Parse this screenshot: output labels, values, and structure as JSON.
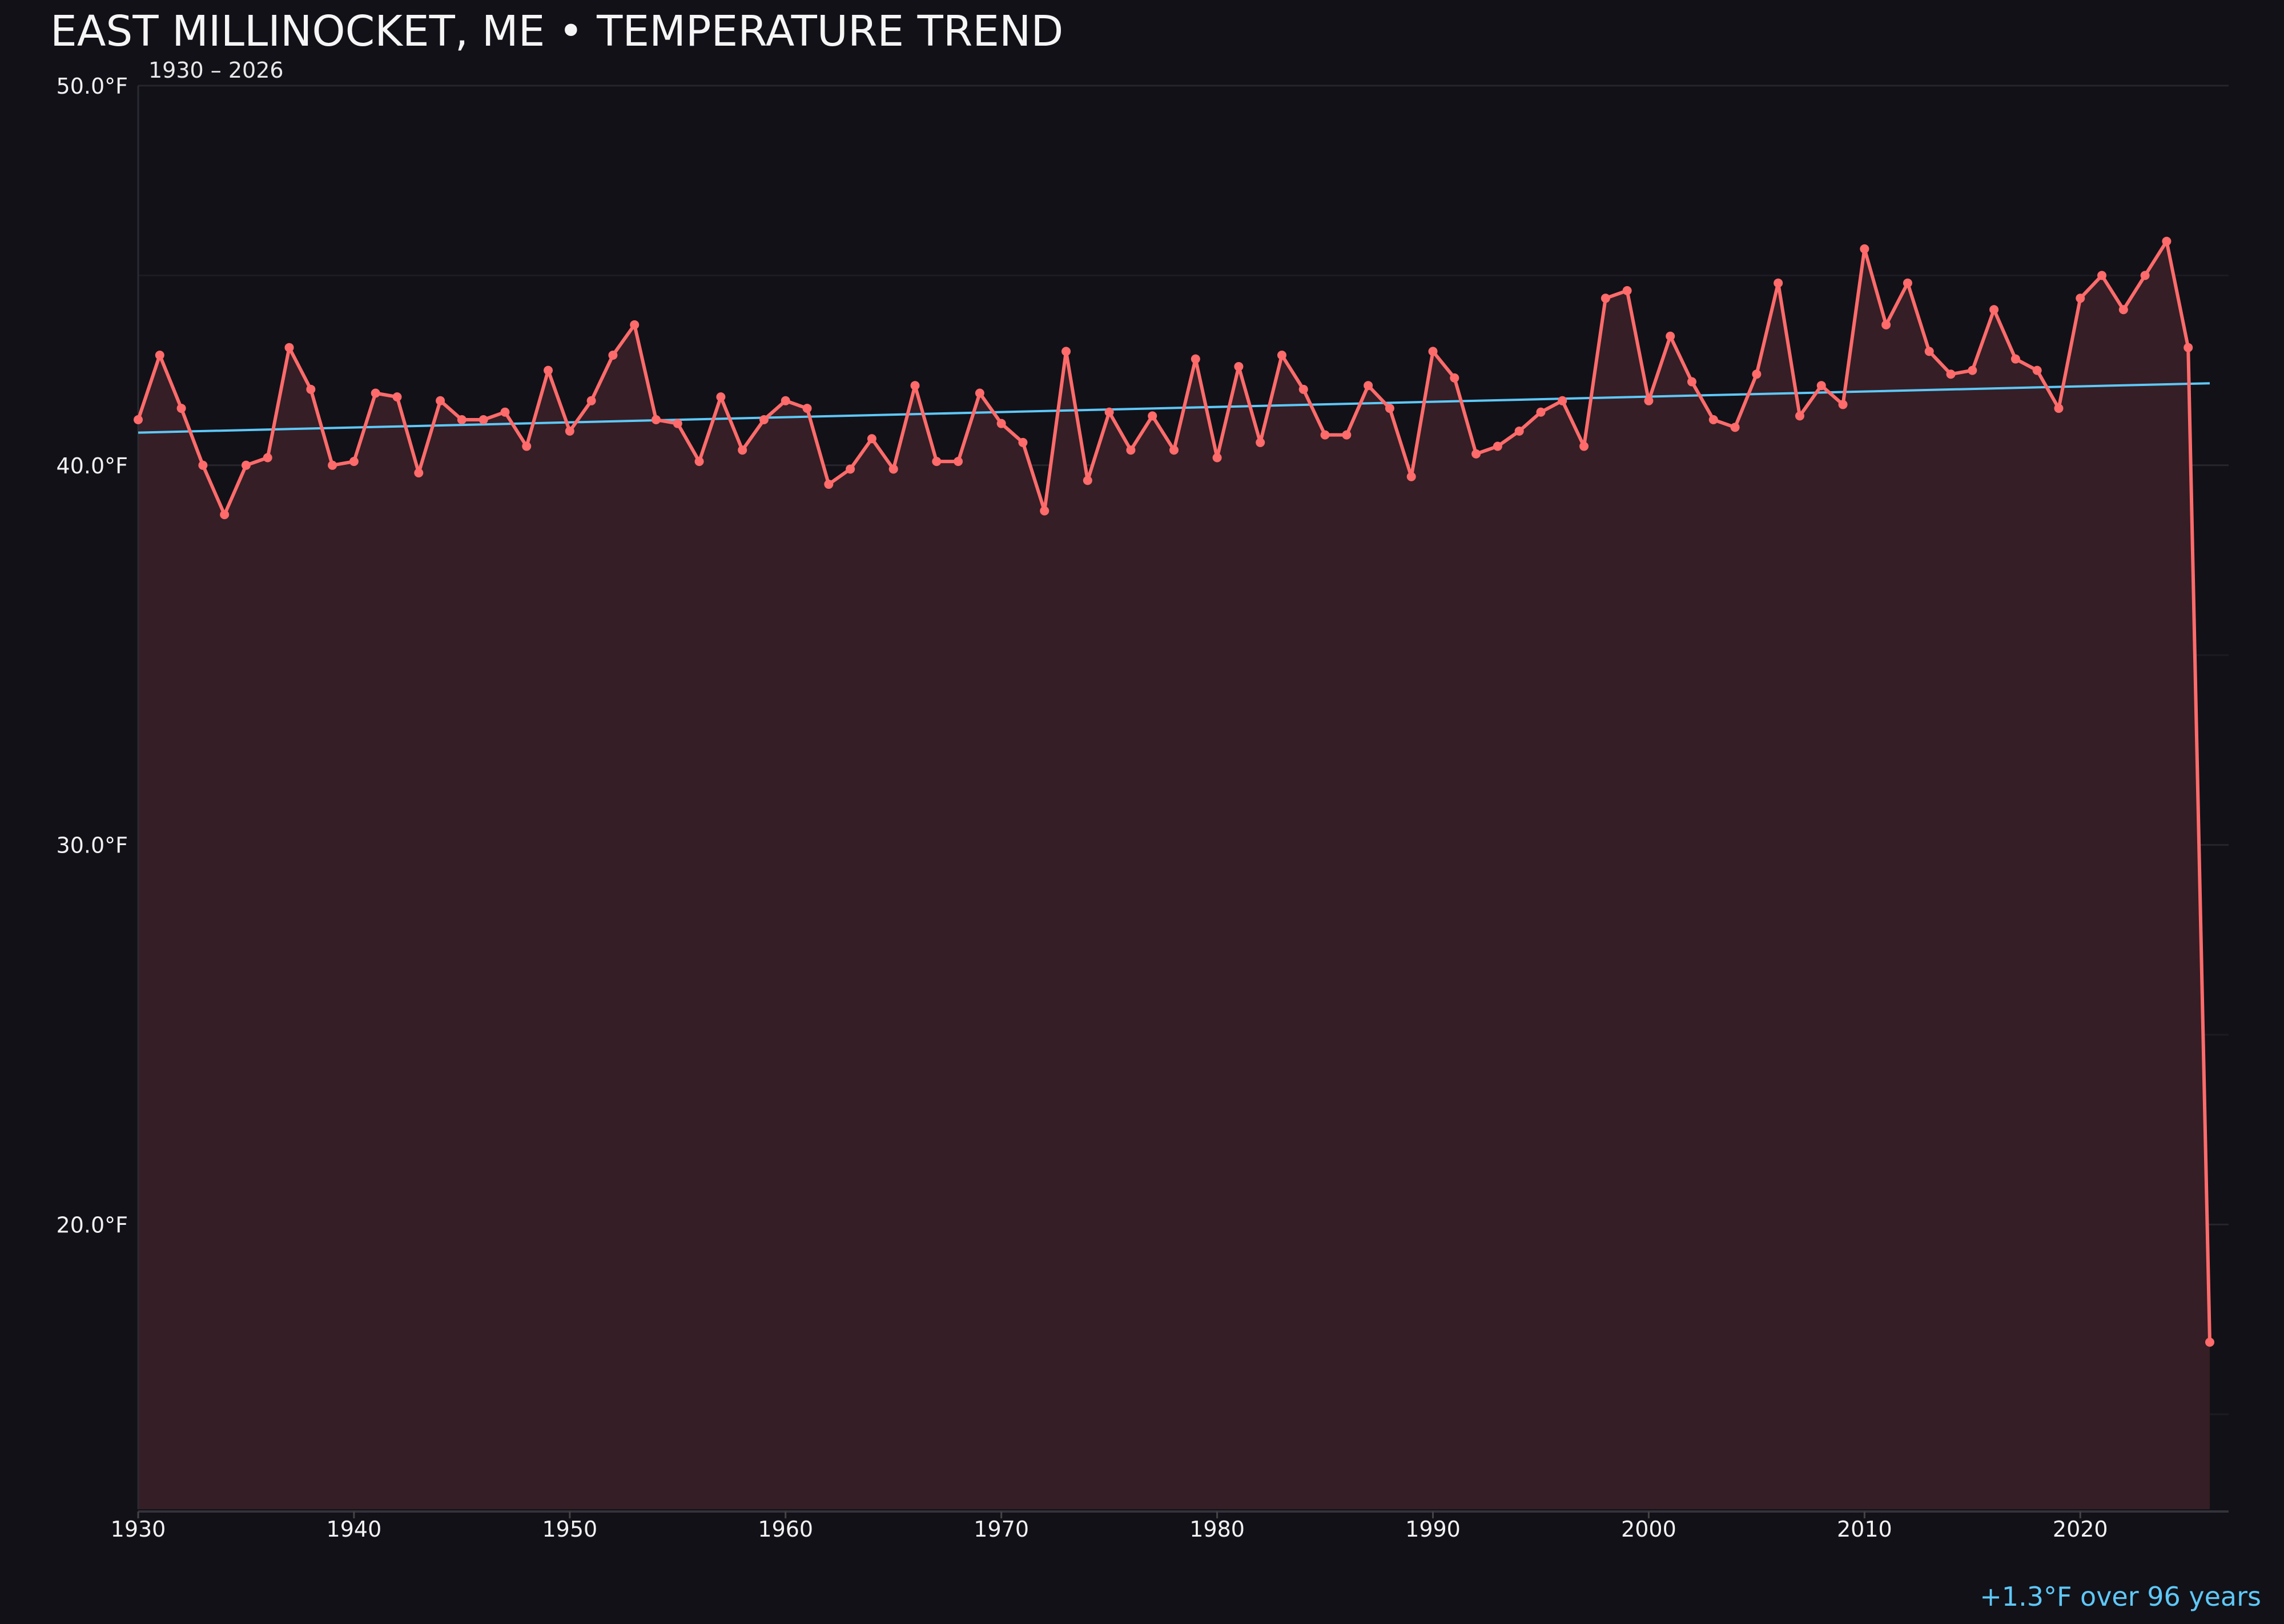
{
  "chart_data": {
    "type": "line",
    "title": "EAST MILLINOCKET, ME • TEMPERATURE TREND",
    "subtitle": "1930 – 2026",
    "xlabel": "",
    "ylabel": "",
    "xlim": [
      1930,
      2027
    ],
    "ylim": [
      12.5,
      50
    ],
    "x_ticks": [
      1930,
      1940,
      1950,
      1960,
      1970,
      1980,
      1990,
      2000,
      2010,
      2020
    ],
    "y_ticks": [
      20,
      30,
      40,
      50
    ],
    "y_tick_labels": [
      "20.0°F",
      "30.0°F",
      "40.0°F",
      "50.0°F"
    ],
    "grid": "horizontal",
    "annotation": "+1.3°F over 96 years",
    "colors": {
      "series": "#ff6b6b",
      "fill": "#351e25",
      "trend": "#5ec8f8",
      "background": "#121118",
      "annotation": "#5ec8f8"
    },
    "series": [
      {
        "x": [
          1930,
          1931,
          1932,
          1933,
          1934,
          1935,
          1936,
          1937,
          1938,
          1939,
          1940,
          1941,
          1942,
          1943,
          1944,
          1945,
          1946,
          1947,
          1948,
          1949,
          1950,
          1951,
          1952,
          1953,
          1954,
          1955,
          1956,
          1957,
          1958,
          1959,
          1960,
          1961,
          1962,
          1963,
          1964,
          1965,
          1966,
          1967,
          1968,
          1969,
          1970,
          1971,
          1972,
          1973,
          1974,
          1975,
          1976,
          1977,
          1978,
          1979,
          1980,
          1981,
          1982,
          1983,
          1984,
          1985,
          1986,
          1987,
          1988,
          1989,
          1990,
          1991,
          1992,
          1993,
          1994,
          1995,
          1996,
          1997,
          1998,
          1999,
          2000,
          2001,
          2002,
          2003,
          2004,
          2005,
          2006,
          2007,
          2008,
          2009,
          2010,
          2011,
          2012,
          2013,
          2014,
          2015,
          2016,
          2017,
          2018,
          2019,
          2020,
          2021,
          2022,
          2023,
          2024,
          2025,
          2026
        ],
        "y": [
          41.2,
          42.9,
          41.5,
          40.0,
          38.7,
          40.0,
          40.2,
          43.1,
          42.0,
          40.0,
          40.1,
          41.9,
          41.8,
          39.8,
          41.7,
          41.2,
          41.2,
          41.4,
          40.5,
          42.5,
          40.9,
          41.7,
          42.9,
          43.7,
          41.2,
          41.1,
          40.1,
          41.8,
          40.4,
          41.2,
          41.7,
          41.5,
          39.5,
          39.9,
          40.7,
          39.9,
          42.1,
          40.1,
          40.1,
          41.9,
          41.1,
          40.6,
          38.8,
          43.0,
          39.6,
          41.4,
          40.4,
          41.3,
          40.4,
          42.8,
          40.2,
          42.6,
          40.6,
          42.9,
          42.0,
          40.8,
          40.8,
          42.1,
          41.5,
          39.7,
          43.0,
          42.3,
          40.3,
          40.5,
          40.9,
          41.4,
          41.7,
          40.5,
          44.4,
          44.6,
          41.7,
          43.4,
          42.2,
          41.2,
          41.0,
          42.4,
          44.8,
          41.3,
          42.1,
          41.6,
          45.7,
          43.7,
          44.8,
          43.0,
          42.4,
          42.5,
          44.1,
          42.8,
          42.5,
          41.5,
          44.4,
          45.0,
          44.1,
          45.0,
          45.9,
          43.1,
          16.9
        ]
      }
    ],
    "trend": {
      "x": [
        1930,
        2026
      ],
      "y": [
        40.86,
        42.16
      ]
    }
  }
}
